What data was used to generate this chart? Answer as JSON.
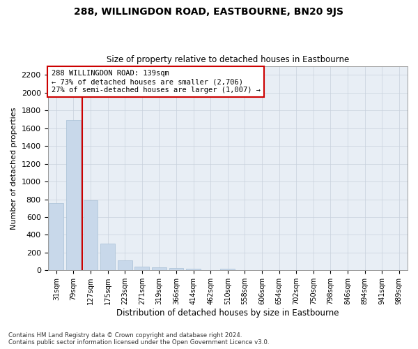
{
  "title": "288, WILLINGDON ROAD, EASTBOURNE, BN20 9JS",
  "subtitle": "Size of property relative to detached houses in Eastbourne",
  "xlabel": "Distribution of detached houses by size in Eastbourne",
  "ylabel": "Number of detached properties",
  "bar_labels": [
    "31sqm",
    "79sqm",
    "127sqm",
    "175sqm",
    "223sqm",
    "271sqm",
    "319sqm",
    "366sqm",
    "414sqm",
    "462sqm",
    "510sqm",
    "558sqm",
    "606sqm",
    "654sqm",
    "702sqm",
    "750sqm",
    "798sqm",
    "846sqm",
    "894sqm",
    "941sqm",
    "989sqm"
  ],
  "bar_values": [
    760,
    1690,
    790,
    300,
    110,
    45,
    32,
    27,
    20,
    0,
    20,
    0,
    0,
    0,
    0,
    0,
    0,
    0,
    0,
    0,
    0
  ],
  "bar_color": "#c8d8ea",
  "bar_edgecolor": "#a8c0d6",
  "vline_color": "#cc0000",
  "annotation_text": "288 WILLINGDON ROAD: 139sqm\n← 73% of detached houses are smaller (2,706)\n27% of semi-detached houses are larger (1,007) →",
  "annotation_box_facecolor": "#ffffff",
  "annotation_box_edgecolor": "#cc0000",
  "ylim": [
    0,
    2300
  ],
  "yticks": [
    0,
    200,
    400,
    600,
    800,
    1000,
    1200,
    1400,
    1600,
    1800,
    2000,
    2200
  ],
  "footnote1": "Contains HM Land Registry data © Crown copyright and database right 2024.",
  "footnote2": "Contains public sector information licensed under the Open Government Licence v3.0.",
  "bg_color": "#ffffff",
  "plot_bg_color": "#e8eef5",
  "grid_color": "#c8d0dc"
}
